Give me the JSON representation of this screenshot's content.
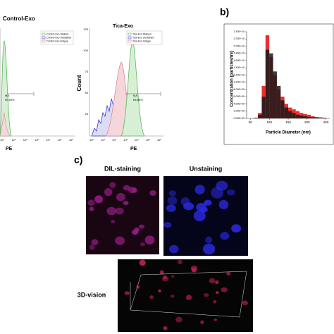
{
  "panel_a": {
    "left": {
      "title": "Control-Exo",
      "legend": [
        "Control-Exo Stained",
        "Control-Exo Unstained",
        "Control-Exo Isotype"
      ],
      "gate_label": "MA",
      "gate_value": "92.69%",
      "x_label": "PE",
      "x_ticks": [
        "10⁰",
        "10¹",
        "10²",
        "10³",
        "10⁴",
        "10⁵",
        "10⁶"
      ]
    },
    "right": {
      "title": "Tica-Exo",
      "legend": [
        "Tica-Exo Stained",
        "Tica-Exo Unstained",
        "Tica-Exo Isotype"
      ],
      "gate_label": "MA",
      "gate_value": "63.68%",
      "x_label": "PE",
      "y_label": "Count",
      "y_ticks": [
        "125",
        "100",
        "75",
        "50",
        "25"
      ],
      "x_ticks": [
        "10⁰",
        "10¹",
        "10²",
        "10³",
        "10⁴",
        "10⁵",
        "10⁶"
      ]
    }
  },
  "chart_data": {
    "type": "histogram",
    "panel_label": "b)",
    "x_label": "Particle Diameter (nm)",
    "y_label": "Concentration (particles/ml)",
    "bins": [
      60,
      70,
      80,
      90,
      100,
      110,
      120,
      130,
      140,
      150,
      160,
      170,
      180,
      190,
      200,
      210,
      220,
      230,
      240,
      250
    ],
    "series": [
      {
        "name": "red",
        "color": "#e8302f",
        "values": [
          200000000.0,
          1500000000.0,
          9000000000.0,
          23000000000.0,
          17000000000.0,
          12000000000.0,
          8000000000.0,
          6000000000.0,
          4000000000.0,
          3000000000.0,
          2500000000.0,
          2000000000.0,
          1500000000.0,
          1200000000.0,
          1000000000.0,
          600000000.0,
          400000000.0,
          300000000.0,
          200000000.0
        ]
      },
      {
        "name": "black",
        "color": "#1a1a1a",
        "values": [
          100000000.0,
          1000000000.0,
          6000000000.0,
          19000000000.0,
          18000000000.0,
          13000000000.0,
          9000000000.0,
          5000000000.0,
          3000000000.0,
          2000000000.0,
          1500000000.0,
          1000000000.0,
          800000000.0,
          600000000.0,
          400000000.0,
          300000000.0,
          200000000.0,
          100000000.0,
          100000000.0
        ]
      }
    ],
    "xlim": [
      40,
      260
    ],
    "xticks": [
      50,
      100,
      150,
      200,
      250
    ],
    "ylim": [
      0,
      24000000000.0
    ],
    "yticks": [
      {
        "value": 0,
        "label": "0.00E+00"
      },
      {
        "value": 2000000000.0,
        "label": "2.00E+09"
      },
      {
        "value": 4000000000.0,
        "label": "4.00E+09"
      },
      {
        "value": 6000000000.0,
        "label": "6.00E+09"
      },
      {
        "value": 8000000000.0,
        "label": "8.00E+09"
      },
      {
        "value": 10000000000.0,
        "label": "1.00E+10"
      },
      {
        "value": 12000000000.0,
        "label": "1.20E+10"
      },
      {
        "value": 14000000000.0,
        "label": "1.40E+10"
      },
      {
        "value": 16000000000.0,
        "label": "1.60E+10"
      },
      {
        "value": 18000000000.0,
        "label": "1.80E+10"
      },
      {
        "value": 20000000000.0,
        "label": "2.00E+10"
      },
      {
        "value": 22000000000.0,
        "label": "2.20E+10"
      },
      {
        "value": 24000000000.0,
        "label": "2.40E+10"
      }
    ]
  },
  "panel_c": {
    "label": "c)",
    "images": [
      "DIL-staining",
      "Unstaining"
    ],
    "vision_label": "3D-vision"
  }
}
